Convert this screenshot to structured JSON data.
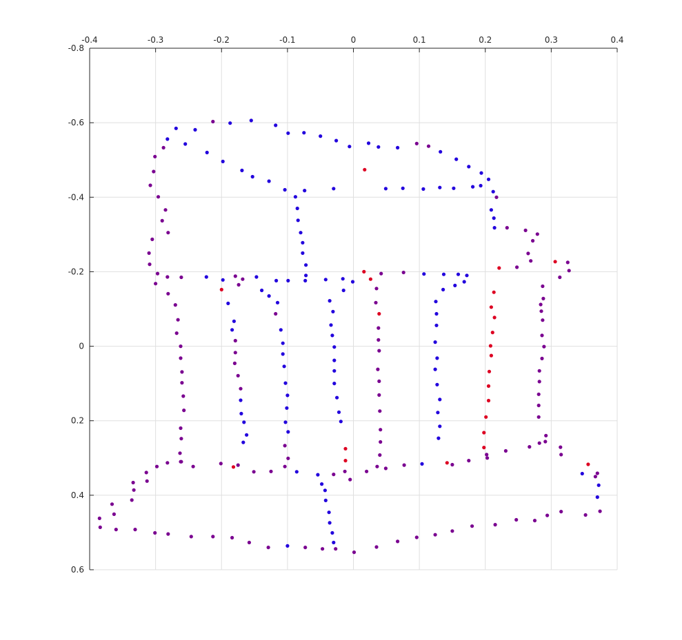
{
  "chart_data": {
    "type": "scatter",
    "title": "",
    "xlabel": "",
    "ylabel": "",
    "xlim": [
      -0.4,
      0.4
    ],
    "ylim": [
      -0.8,
      0.6
    ],
    "y_reversed": true,
    "x_axis_location": "top",
    "grid": true,
    "legend": "none",
    "x_ticks": [
      -0.4,
      -0.3,
      -0.2,
      -0.1,
      0,
      0.1,
      0.2,
      0.3,
      0.4
    ],
    "x_tick_labels": [
      "-0.4",
      "-0.3",
      "-0.2",
      "-0.1",
      "0",
      "0.1",
      "0.2",
      "0.3",
      "0.4"
    ],
    "y_ticks": [
      -0.8,
      -0.6,
      -0.4,
      -0.2,
      0,
      0.2,
      0.4,
      0.6
    ],
    "y_tick_labels": [
      "-0.8",
      "-0.6",
      "-0.4",
      "-0.2",
      "0",
      "0.2",
      "0.4",
      "0.6"
    ],
    "colors": {
      "blue": "#2200dd",
      "purple": "#7a0090",
      "red": "#dd0022",
      "grid": "#dfdfdf",
      "axis": "#262626"
    },
    "points": [
      [
        -0.269,
        -0.585,
        "b"
      ],
      [
        -0.282,
        -0.556,
        "b"
      ],
      [
        -0.24,
        -0.581,
        "b"
      ],
      [
        -0.213,
        -0.603,
        "p"
      ],
      [
        -0.187,
        -0.599,
        "b"
      ],
      [
        -0.155,
        -0.606,
        "b"
      ],
      [
        -0.118,
        -0.593,
        "b"
      ],
      [
        -0.099,
        -0.572,
        "b"
      ],
      [
        -0.075,
        -0.573,
        "b"
      ],
      [
        -0.05,
        -0.564,
        "b"
      ],
      [
        -0.026,
        -0.552,
        "b"
      ],
      [
        -0.006,
        -0.536,
        "b"
      ],
      [
        0.023,
        -0.545,
        "b"
      ],
      [
        0.038,
        -0.535,
        "b"
      ],
      [
        0.067,
        -0.533,
        "b"
      ],
      [
        0.096,
        -0.544,
        "p"
      ],
      [
        0.114,
        -0.537,
        "p"
      ],
      [
        0.132,
        -0.522,
        "b"
      ],
      [
        0.156,
        -0.502,
        "b"
      ],
      [
        0.175,
        -0.482,
        "b"
      ],
      [
        0.194,
        -0.465,
        "b"
      ],
      [
        0.205,
        -0.448,
        "b"
      ],
      [
        0.212,
        -0.415,
        "b"
      ],
      [
        0.217,
        -0.4,
        "p"
      ],
      [
        -0.288,
        -0.533,
        "p"
      ],
      [
        -0.301,
        -0.509,
        "p"
      ],
      [
        -0.303,
        -0.469,
        "p"
      ],
      [
        -0.308,
        -0.432,
        "p"
      ],
      [
        -0.296,
        -0.401,
        "p"
      ],
      [
        -0.285,
        -0.366,
        "p"
      ],
      [
        -0.29,
        -0.337,
        "p"
      ],
      [
        -0.281,
        -0.305,
        "p"
      ],
      [
        -0.305,
        -0.287,
        "p"
      ],
      [
        -0.31,
        -0.25,
        "p"
      ],
      [
        -0.309,
        -0.22,
        "p"
      ],
      [
        -0.297,
        -0.195,
        "p"
      ],
      [
        -0.3,
        -0.168,
        "p"
      ],
      [
        -0.255,
        -0.543,
        "b"
      ],
      [
        -0.222,
        -0.52,
        "b"
      ],
      [
        -0.198,
        -0.496,
        "b"
      ],
      [
        -0.169,
        -0.472,
        "b"
      ],
      [
        -0.153,
        -0.455,
        "b"
      ],
      [
        -0.128,
        -0.443,
        "b"
      ],
      [
        -0.104,
        -0.42,
        "b"
      ],
      [
        -0.088,
        -0.401,
        "b"
      ],
      [
        -0.074,
        -0.418,
        "b"
      ],
      [
        -0.03,
        -0.423,
        "b"
      ],
      [
        0.017,
        -0.474,
        "r"
      ],
      [
        0.049,
        -0.423,
        "b"
      ],
      [
        0.075,
        -0.424,
        "b"
      ],
      [
        0.106,
        -0.422,
        "b"
      ],
      [
        0.131,
        -0.426,
        "b"
      ],
      [
        0.152,
        -0.424,
        "b"
      ],
      [
        0.181,
        -0.428,
        "b"
      ],
      [
        0.193,
        -0.431,
        "b"
      ],
      [
        -0.085,
        -0.37,
        "b"
      ],
      [
        -0.084,
        -0.338,
        "b"
      ],
      [
        -0.08,
        -0.305,
        "b"
      ],
      [
        -0.077,
        -0.278,
        "b"
      ],
      [
        -0.077,
        -0.25,
        "b"
      ],
      [
        -0.072,
        -0.218,
        "b"
      ],
      [
        -0.072,
        -0.19,
        "b"
      ],
      [
        -0.073,
        -0.176,
        "b"
      ],
      [
        0.209,
        -0.366,
        "b"
      ],
      [
        0.213,
        -0.344,
        "b"
      ],
      [
        0.214,
        -0.318,
        "b"
      ],
      [
        0.233,
        -0.318,
        "p"
      ],
      [
        0.261,
        -0.311,
        "p"
      ],
      [
        0.279,
        -0.301,
        "p"
      ],
      [
        0.272,
        -0.283,
        "p"
      ],
      [
        0.265,
        -0.249,
        "p"
      ],
      [
        0.269,
        -0.229,
        "p"
      ],
      [
        0.248,
        -0.212,
        "p"
      ],
      [
        0.221,
        -0.21,
        "r"
      ],
      [
        0.306,
        -0.227,
        "r"
      ],
      [
        0.325,
        -0.225,
        "p"
      ],
      [
        0.327,
        -0.203,
        "p"
      ],
      [
        0.313,
        -0.185,
        "p"
      ],
      [
        -0.282,
        -0.186,
        "p"
      ],
      [
        -0.261,
        -0.185,
        "p"
      ],
      [
        -0.223,
        -0.186,
        "b"
      ],
      [
        -0.198,
        -0.178,
        "b"
      ],
      [
        -0.179,
        -0.188,
        "p"
      ],
      [
        -0.168,
        -0.18,
        "p"
      ],
      [
        -0.147,
        -0.186,
        "b"
      ],
      [
        -0.117,
        -0.176,
        "b"
      ],
      [
        -0.099,
        -0.176,
        "b"
      ],
      [
        -0.042,
        -0.179,
        "b"
      ],
      [
        -0.016,
        -0.181,
        "b"
      ],
      [
        -0.001,
        -0.173,
        "b"
      ],
      [
        0.016,
        -0.2,
        "r"
      ],
      [
        0.026,
        -0.18,
        "r"
      ],
      [
        0.042,
        -0.195,
        "p"
      ],
      [
        0.076,
        -0.198,
        "p"
      ],
      [
        0.107,
        -0.194,
        "b"
      ],
      [
        0.137,
        -0.193,
        "b"
      ],
      [
        0.159,
        -0.193,
        "b"
      ],
      [
        0.154,
        -0.163,
        "b"
      ],
      [
        0.136,
        -0.152,
        "b"
      ],
      [
        0.168,
        -0.173,
        "b"
      ],
      [
        0.172,
        -0.19,
        "b"
      ],
      [
        -0.281,
        -0.141,
        "p"
      ],
      [
        -0.27,
        -0.111,
        "p"
      ],
      [
        -0.266,
        -0.071,
        "p"
      ],
      [
        -0.268,
        -0.035,
        "p"
      ],
      [
        -0.262,
        0.0,
        "p"
      ],
      [
        -0.262,
        0.032,
        "p"
      ],
      [
        -0.26,
        0.069,
        "p"
      ],
      [
        -0.26,
        0.098,
        "p"
      ],
      [
        -0.258,
        0.134,
        "p"
      ],
      [
        -0.257,
        0.172,
        "p"
      ],
      [
        -0.262,
        0.22,
        "p"
      ],
      [
        -0.261,
        0.248,
        "p"
      ],
      [
        -0.263,
        0.287,
        "p"
      ],
      [
        -0.262,
        0.31,
        "p"
      ],
      [
        -0.2,
        -0.152,
        "r"
      ],
      [
        -0.174,
        -0.165,
        "p"
      ],
      [
        -0.19,
        -0.115,
        "b"
      ],
      [
        -0.181,
        -0.067,
        "b"
      ],
      [
        -0.184,
        -0.044,
        "b"
      ],
      [
        -0.179,
        -0.015,
        "p"
      ],
      [
        -0.179,
        0.017,
        "p"
      ],
      [
        -0.18,
        0.046,
        "p"
      ],
      [
        -0.175,
        0.079,
        "p"
      ],
      [
        -0.171,
        0.114,
        "p"
      ],
      [
        -0.171,
        0.145,
        "b"
      ],
      [
        -0.17,
        0.181,
        "b"
      ],
      [
        -0.166,
        0.204,
        "b"
      ],
      [
        -0.162,
        0.238,
        "b"
      ],
      [
        -0.167,
        0.258,
        "b"
      ],
      [
        -0.139,
        -0.15,
        "b"
      ],
      [
        -0.128,
        -0.135,
        "b"
      ],
      [
        -0.115,
        -0.117,
        "b"
      ],
      [
        -0.118,
        -0.087,
        "p"
      ],
      [
        -0.11,
        -0.044,
        "b"
      ],
      [
        -0.107,
        -0.008,
        "b"
      ],
      [
        -0.107,
        0.021,
        "b"
      ],
      [
        -0.105,
        0.054,
        "b"
      ],
      [
        -0.103,
        0.099,
        "b"
      ],
      [
        -0.1,
        0.132,
        "b"
      ],
      [
        -0.101,
        0.166,
        "b"
      ],
      [
        -0.103,
        0.204,
        "b"
      ],
      [
        -0.099,
        0.23,
        "b"
      ],
      [
        -0.104,
        0.267,
        "p"
      ],
      [
        -0.099,
        0.301,
        "p"
      ],
      [
        -0.015,
        -0.15,
        "b"
      ],
      [
        -0.036,
        -0.122,
        "b"
      ],
      [
        -0.031,
        -0.093,
        "b"
      ],
      [
        -0.034,
        -0.057,
        "b"
      ],
      [
        -0.032,
        -0.029,
        "b"
      ],
      [
        -0.029,
        0.002,
        "b"
      ],
      [
        -0.029,
        0.038,
        "b"
      ],
      [
        -0.029,
        0.066,
        "b"
      ],
      [
        -0.029,
        0.1,
        "b"
      ],
      [
        -0.025,
        0.138,
        "b"
      ],
      [
        -0.022,
        0.177,
        "b"
      ],
      [
        -0.019,
        0.202,
        "b"
      ],
      [
        0.035,
        -0.155,
        "p"
      ],
      [
        0.034,
        -0.117,
        "p"
      ],
      [
        0.039,
        -0.087,
        "r"
      ],
      [
        0.038,
        -0.049,
        "p"
      ],
      [
        0.038,
        -0.017,
        "p"
      ],
      [
        0.039,
        0.012,
        "p"
      ],
      [
        0.037,
        0.062,
        "p"
      ],
      [
        0.039,
        0.094,
        "p"
      ],
      [
        0.039,
        0.131,
        "p"
      ],
      [
        0.04,
        0.174,
        "p"
      ],
      [
        0.041,
        0.224,
        "p"
      ],
      [
        0.041,
        0.257,
        "p"
      ],
      [
        0.04,
        0.292,
        "p"
      ],
      [
        0.125,
        -0.12,
        "b"
      ],
      [
        0.126,
        -0.087,
        "b"
      ],
      [
        0.126,
        -0.056,
        "b"
      ],
      [
        0.124,
        -0.011,
        "b"
      ],
      [
        0.127,
        0.032,
        "b"
      ],
      [
        0.124,
        0.062,
        "b"
      ],
      [
        0.127,
        0.103,
        "b"
      ],
      [
        0.131,
        0.143,
        "b"
      ],
      [
        0.128,
        0.178,
        "b"
      ],
      [
        0.131,
        0.215,
        "b"
      ],
      [
        0.129,
        0.247,
        "b"
      ],
      [
        0.213,
        -0.145,
        "r"
      ],
      [
        0.209,
        -0.105,
        "r"
      ],
      [
        0.214,
        -0.077,
        "r"
      ],
      [
        0.211,
        -0.037,
        "r"
      ],
      [
        0.208,
        -0.001,
        "r"
      ],
      [
        0.209,
        0.025,
        "r"
      ],
      [
        0.206,
        0.068,
        "r"
      ],
      [
        0.205,
        0.107,
        "r"
      ],
      [
        0.205,
        0.146,
        "r"
      ],
      [
        0.201,
        0.19,
        "r"
      ],
      [
        0.198,
        0.232,
        "r"
      ],
      [
        0.198,
        0.272,
        "r"
      ],
      [
        0.202,
        0.291,
        "p"
      ],
      [
        0.203,
        0.3,
        "p"
      ],
      [
        0.287,
        -0.161,
        "p"
      ],
      [
        0.288,
        -0.128,
        "p"
      ],
      [
        0.284,
        -0.112,
        "p"
      ],
      [
        0.285,
        -0.094,
        "p"
      ],
      [
        0.287,
        -0.07,
        "p"
      ],
      [
        0.286,
        -0.029,
        "p"
      ],
      [
        0.289,
        0.001,
        "p"
      ],
      [
        0.286,
        0.033,
        "p"
      ],
      [
        0.282,
        0.066,
        "p"
      ],
      [
        0.282,
        0.095,
        "p"
      ],
      [
        0.281,
        0.129,
        "p"
      ],
      [
        0.281,
        0.159,
        "p"
      ],
      [
        0.281,
        0.19,
        "p"
      ],
      [
        0.282,
        0.26,
        "p"
      ],
      [
        0.292,
        0.24,
        "p"
      ],
      [
        0.291,
        0.256,
        "p"
      ],
      [
        0.314,
        0.271,
        "p"
      ],
      [
        0.315,
        0.291,
        "p"
      ],
      [
        -0.298,
        0.323,
        "p"
      ],
      [
        -0.314,
        0.339,
        "p"
      ],
      [
        -0.313,
        0.362,
        "p"
      ],
      [
        -0.334,
        0.366,
        "p"
      ],
      [
        -0.333,
        0.386,
        "p"
      ],
      [
        -0.336,
        0.413,
        "p"
      ],
      [
        -0.366,
        0.424,
        "p"
      ],
      [
        -0.363,
        0.451,
        "p"
      ],
      [
        -0.385,
        0.462,
        "p"
      ],
      [
        -0.384,
        0.486,
        "p"
      ],
      [
        -0.36,
        0.492,
        "p"
      ],
      [
        -0.331,
        0.492,
        "p"
      ],
      [
        -0.301,
        0.501,
        "p"
      ],
      [
        -0.281,
        0.504,
        "p"
      ],
      [
        -0.246,
        0.511,
        "p"
      ],
      [
        -0.213,
        0.511,
        "p"
      ],
      [
        -0.184,
        0.514,
        "p"
      ],
      [
        -0.158,
        0.527,
        "p"
      ],
      [
        -0.129,
        0.54,
        "p"
      ],
      [
        -0.1,
        0.536,
        "b"
      ],
      [
        -0.073,
        0.54,
        "p"
      ],
      [
        -0.047,
        0.544,
        "p"
      ],
      [
        -0.027,
        0.544,
        "p"
      ],
      [
        0.001,
        0.553,
        "p"
      ],
      [
        0.035,
        0.539,
        "p"
      ],
      [
        0.067,
        0.524,
        "p"
      ],
      [
        0.096,
        0.513,
        "p"
      ],
      [
        0.124,
        0.506,
        "p"
      ],
      [
        0.15,
        0.496,
        "p"
      ],
      [
        0.18,
        0.483,
        "p"
      ],
      [
        0.215,
        0.479,
        "p"
      ],
      [
        0.247,
        0.466,
        "p"
      ],
      [
        0.275,
        0.468,
        "p"
      ],
      [
        0.294,
        0.454,
        "p"
      ],
      [
        0.315,
        0.444,
        "p"
      ],
      [
        0.352,
        0.453,
        "p"
      ],
      [
        0.374,
        0.443,
        "p"
      ],
      [
        -0.282,
        0.313,
        "p"
      ],
      [
        -0.261,
        0.31,
        "p"
      ],
      [
        -0.243,
        0.323,
        "p"
      ],
      [
        -0.201,
        0.315,
        "p"
      ],
      [
        -0.175,
        0.319,
        "p"
      ],
      [
        -0.182,
        0.324,
        "r"
      ],
      [
        -0.151,
        0.337,
        "p"
      ],
      [
        -0.125,
        0.336,
        "p"
      ],
      [
        -0.104,
        0.323,
        "p"
      ],
      [
        -0.086,
        0.337,
        "b"
      ],
      [
        -0.054,
        0.345,
        "b"
      ],
      [
        -0.03,
        0.344,
        "p"
      ],
      [
        -0.013,
        0.336,
        "p"
      ],
      [
        -0.005,
        0.358,
        "p"
      ],
      [
        0.02,
        0.336,
        "p"
      ],
      [
        0.036,
        0.323,
        "p"
      ],
      [
        0.049,
        0.328,
        "p"
      ],
      [
        0.077,
        0.319,
        "p"
      ],
      [
        0.104,
        0.316,
        "b"
      ],
      [
        0.142,
        0.313,
        "r"
      ],
      [
        0.15,
        0.318,
        "p"
      ],
      [
        0.175,
        0.307,
        "p"
      ],
      [
        0.231,
        0.281,
        "p"
      ],
      [
        0.267,
        0.27,
        "p"
      ],
      [
        -0.012,
        0.275,
        "r"
      ],
      [
        -0.012,
        0.307,
        "r"
      ],
      [
        -0.048,
        0.37,
        "b"
      ],
      [
        -0.043,
        0.387,
        "b"
      ],
      [
        -0.042,
        0.414,
        "b"
      ],
      [
        -0.037,
        0.446,
        "b"
      ],
      [
        -0.036,
        0.474,
        "b"
      ],
      [
        -0.032,
        0.501,
        "b"
      ],
      [
        -0.03,
        0.527,
        "b"
      ],
      [
        0.356,
        0.317,
        "r"
      ],
      [
        0.347,
        0.342,
        "b"
      ],
      [
        0.367,
        0.35,
        "p"
      ],
      [
        0.37,
        0.341,
        "p"
      ],
      [
        0.372,
        0.373,
        "b"
      ],
      [
        0.37,
        0.405,
        "b"
      ]
    ]
  }
}
